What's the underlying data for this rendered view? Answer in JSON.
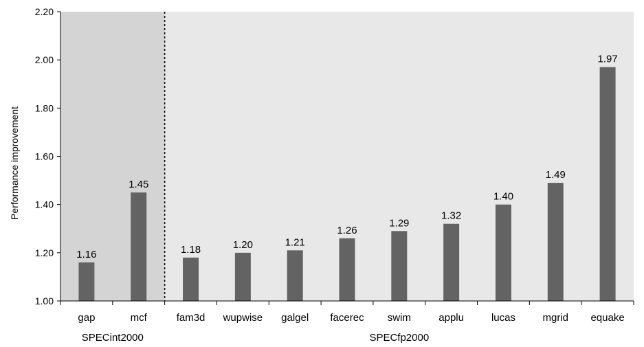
{
  "chart_data": {
    "type": "bar",
    "title": "",
    "xlabel": "",
    "ylabel": "Performance improvement",
    "ylim": [
      1.0,
      2.2
    ],
    "yticks": [
      "1.00",
      "1.20",
      "1.40",
      "1.60",
      "1.80",
      "2.00",
      "2.20"
    ],
    "categories": [
      "gap",
      "mcf",
      "fam3d",
      "wupwise",
      "galgel",
      "facerec",
      "swim",
      "applu",
      "lucas",
      "mgrid",
      "equake"
    ],
    "values": [
      1.16,
      1.45,
      1.18,
      1.2,
      1.21,
      1.26,
      1.29,
      1.32,
      1.4,
      1.49,
      1.97
    ],
    "value_labels": [
      "1.16",
      "1.45",
      "1.18",
      "1.20",
      "1.21",
      "1.26",
      "1.29",
      "1.32",
      "1.40",
      "1.49",
      "1.97"
    ],
    "groups": [
      {
        "name": "SPECint2000",
        "count": 2
      },
      {
        "name": "SPECfp2000",
        "count": 9
      }
    ],
    "grid": false,
    "legend": "none",
    "colors": {
      "bar": "#636363",
      "group1_bg": "#d4d4d4",
      "group2_bg": "#e8e8e8",
      "axis": "#000000"
    }
  }
}
